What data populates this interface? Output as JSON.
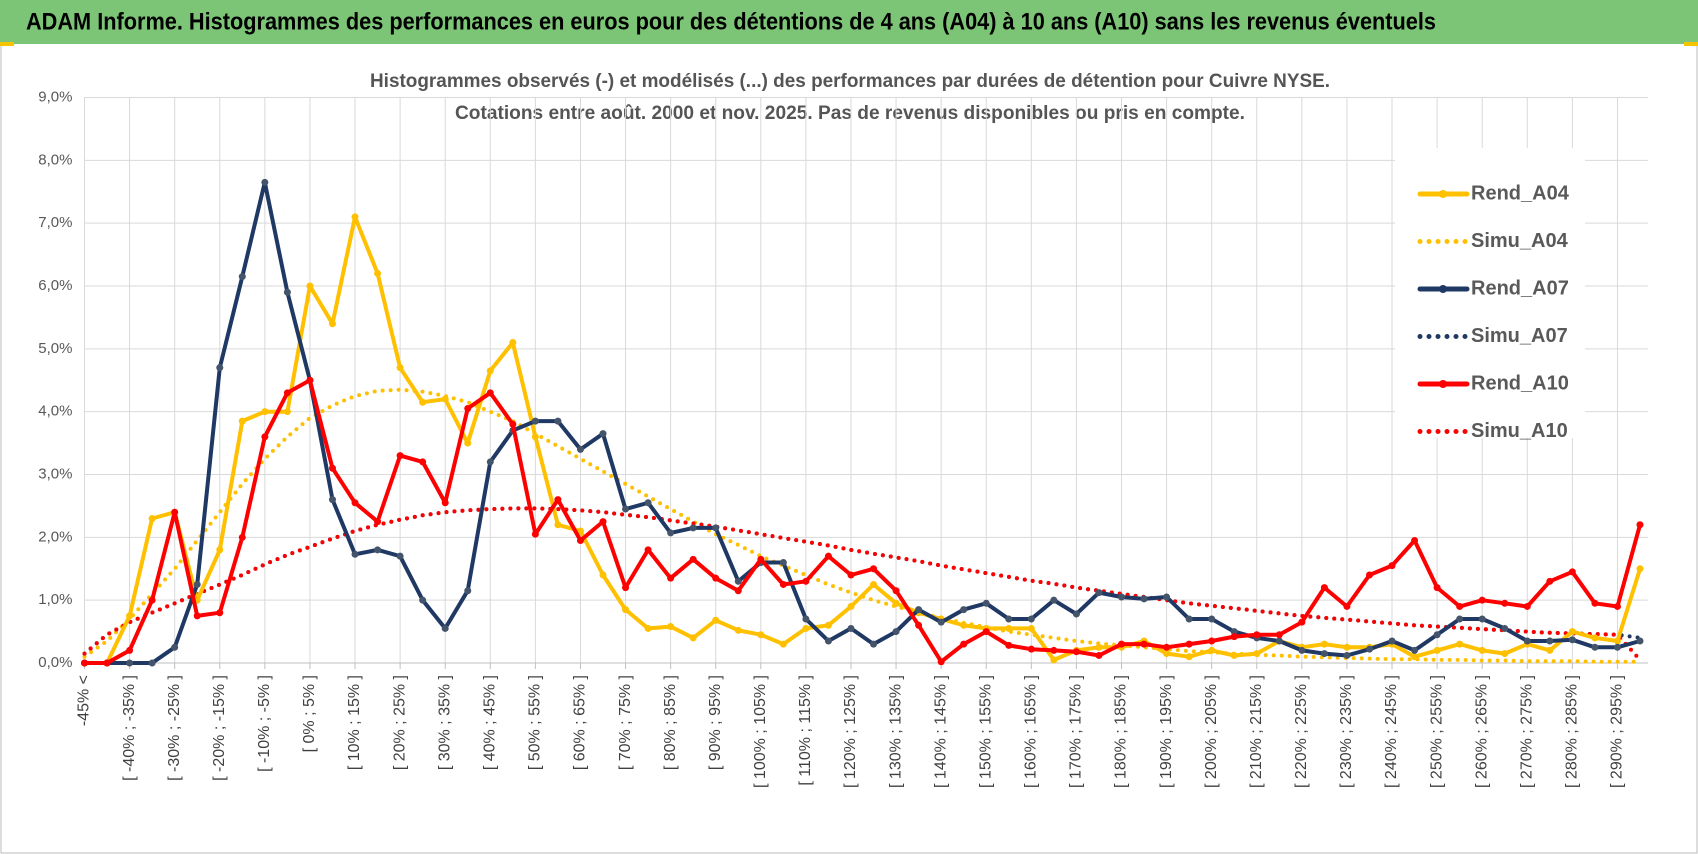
{
  "header": {
    "title": "ADAM Informe. Histogrammes des performances en euros pour des détentions de 4 ans (A04) à 10 ans (A10) sans les revenus éventuels"
  },
  "chart_data": {
    "type": "line",
    "title": "Histogrammes observés (-) et modélisés (...) des performances par durées de détention pour Cuivre NYSE.",
    "subtitle": "Cotations entre août. 2000 et nov. 2025. Pas de revenus disponibles ou pris en compte.",
    "categories": [
      "-45% <",
      null,
      "[ -40% ; -35% ]",
      null,
      "[ -30% ; -25% ]",
      null,
      "[ -20% ; -15% ]",
      null,
      "[ -10% ; -5% ]",
      null,
      "[ 0% ; 5% ]",
      null,
      "[ 10% ; 15% ]",
      null,
      "[ 20% ; 25% ]",
      null,
      "[ 30% ; 35% ]",
      null,
      "[ 40% ; 45% ]",
      null,
      "[ 50% ; 55% ]",
      null,
      "[ 60% ; 65% ]",
      null,
      "[ 70% ; 75% ]",
      null,
      "[ 80% ; 85% ]",
      null,
      "[ 90% ; 95% ]",
      null,
      "[ 100% ; 105% ]",
      null,
      "[ 110% ; 115% ]",
      null,
      "[ 120% ; 125% ]",
      null,
      "[ 130% ; 135% ]",
      null,
      "[ 140% ; 145% ]",
      null,
      "[ 150% ; 155% ]",
      null,
      "[ 160% ; 165% ]",
      null,
      "[ 170% ; 175% ]",
      null,
      "[ 180% ; 185% ]",
      null,
      "[ 190% ; 195% ]",
      null,
      "[ 200% ; 205% ]",
      null,
      "[ 210% ; 215% ]",
      null,
      "[ 220% ; 225% ]",
      null,
      "[ 230% ; 235% ]",
      null,
      "[ 240% ; 245% ]",
      null,
      "[ 250% ; 255% ]",
      null,
      "[ 260% ; 265% ]",
      null,
      "[ 270% ; 275% ]",
      null,
      "[ 280% ; 285% ]",
      null,
      "[ 290% ; 295% ]",
      null
    ],
    "ylim": [
      0,
      9
    ],
    "yticks": [
      {
        "value": 0,
        "label": "0,0%"
      },
      {
        "value": 1,
        "label": "1,0%"
      },
      {
        "value": 2,
        "label": "2,0%"
      },
      {
        "value": 3,
        "label": "3,0%"
      },
      {
        "value": 4,
        "label": "4,0%"
      },
      {
        "value": 5,
        "label": "5,0%"
      },
      {
        "value": 6,
        "label": "6,0%"
      },
      {
        "value": 7,
        "label": "7,0%"
      },
      {
        "value": 8,
        "label": "8,0%"
      },
      {
        "value": 9,
        "label": "9,0%"
      }
    ],
    "grid": true,
    "legend": "right",
    "series": [
      {
        "name": "Rend_A04",
        "color": "#FFC000",
        "line_style": "solid",
        "markers": true,
        "values": [
          0,
          0,
          0.75,
          2.3,
          2.4,
          1.0,
          1.8,
          3.85,
          4.0,
          4.0,
          6.0,
          5.4,
          7.1,
          6.2,
          4.7,
          4.15,
          4.2,
          3.5,
          4.65,
          5.1,
          3.6,
          2.2,
          2.1,
          1.4,
          0.85,
          0.55,
          0.58,
          0.4,
          0.68,
          0.52,
          0.45,
          0.3,
          0.55,
          0.6,
          0.9,
          1.25,
          0.95,
          0.8,
          0.7,
          0.6,
          0.55,
          0.55,
          0.55,
          0.05,
          0.2,
          0.25,
          0.25,
          0.35,
          0.15,
          0.1,
          0.2,
          0.12,
          0.15,
          0.35,
          0.25,
          0.3,
          0.25,
          0.25,
          0.3,
          0.1,
          0.2,
          0.3,
          0.2,
          0.15,
          0.3,
          0.2,
          0.5,
          0.4,
          0.35,
          1.5
        ]
      },
      {
        "name": "Simu_A04",
        "color": "#FFC000",
        "line_style": "dotted",
        "markers": false,
        "values": [
          0.1,
          0.35,
          0.7,
          1.1,
          1.5,
          1.95,
          2.4,
          2.85,
          3.25,
          3.6,
          3.9,
          4.1,
          4.25,
          4.33,
          4.35,
          4.32,
          4.25,
          4.15,
          4.0,
          3.85,
          3.65,
          3.45,
          3.25,
          3.05,
          2.85,
          2.65,
          2.45,
          2.25,
          2.05,
          1.88,
          1.7,
          1.55,
          1.4,
          1.25,
          1.12,
          1.0,
          0.9,
          0.8,
          0.72,
          0.64,
          0.57,
          0.5,
          0.45,
          0.4,
          0.35,
          0.31,
          0.28,
          0.25,
          0.22,
          0.19,
          0.17,
          0.15,
          0.13,
          0.12,
          0.1,
          0.09,
          0.08,
          0.07,
          0.06,
          0.06,
          0.05,
          0.05,
          0.04,
          0.04,
          0.03,
          0.03,
          0.03,
          0.02,
          0.02,
          0.02
        ]
      },
      {
        "name": "Rend_A07",
        "color": "#1F3864",
        "line_style": "solid",
        "markers": true,
        "values": [
          0,
          0,
          0,
          0,
          0.25,
          1.25,
          4.7,
          6.15,
          7.65,
          5.9,
          4.5,
          2.6,
          1.73,
          1.8,
          1.7,
          1.0,
          0.55,
          1.15,
          3.2,
          3.7,
          3.85,
          3.85,
          3.4,
          3.65,
          2.45,
          2.55,
          2.07,
          2.15,
          2.15,
          1.3,
          1.6,
          1.6,
          0.7,
          0.35,
          0.55,
          0.3,
          0.5,
          0.85,
          0.65,
          0.85,
          0.95,
          0.7,
          0.7,
          1.0,
          0.78,
          1.12,
          1.05,
          1.02,
          1.05,
          0.7,
          0.7,
          0.5,
          0.4,
          0.35,
          0.2,
          0.15,
          0.12,
          0.22,
          0.35,
          0.2,
          0.45,
          0.7,
          0.7,
          0.55,
          0.35,
          0.35,
          0.37,
          0.25,
          0.25,
          0.35
        ]
      },
      {
        "name": "Simu_A07",
        "color": "#1F3864",
        "line_style": "dotted",
        "markers": false,
        "values": [
          0.15,
          0.45,
          0.65,
          0.8,
          0.95,
          1.1,
          1.25,
          1.4,
          1.57,
          1.72,
          1.85,
          1.98,
          2.1,
          2.2,
          2.28,
          2.35,
          2.4,
          2.43,
          2.45,
          2.46,
          2.46,
          2.45,
          2.43,
          2.4,
          2.36,
          2.32,
          2.27,
          2.22,
          2.17,
          2.11,
          2.05,
          1.99,
          1.93,
          1.87,
          1.8,
          1.74,
          1.68,
          1.62,
          1.55,
          1.49,
          1.43,
          1.37,
          1.31,
          1.26,
          1.2,
          1.15,
          1.1,
          1.05,
          1.0,
          0.95,
          0.91,
          0.87,
          0.83,
          0.79,
          0.75,
          0.72,
          0.69,
          0.66,
          0.63,
          0.6,
          0.58,
          0.56,
          0.54,
          0.52,
          0.5,
          0.48,
          0.47,
          0.46,
          0.45,
          0.4
        ]
      },
      {
        "name": "Rend_A10",
        "color": "#FF0000",
        "line_style": "solid",
        "markers": true,
        "values": [
          0,
          0,
          0.2,
          1.0,
          2.4,
          0.75,
          0.8,
          2.0,
          3.6,
          4.3,
          4.5,
          3.1,
          2.55,
          2.25,
          3.3,
          3.2,
          2.55,
          4.05,
          4.3,
          3.8,
          2.05,
          2.6,
          1.95,
          2.25,
          1.2,
          1.8,
          1.35,
          1.65,
          1.35,
          1.15,
          1.65,
          1.25,
          1.3,
          1.7,
          1.4,
          1.5,
          1.15,
          0.6,
          0.02,
          0.3,
          0.5,
          0.28,
          0.22,
          0.2,
          0.18,
          0.12,
          0.3,
          0.3,
          0.25,
          0.3,
          0.35,
          0.42,
          0.45,
          0.45,
          0.65,
          1.2,
          0.9,
          1.4,
          1.55,
          1.95,
          1.2,
          0.9,
          1.0,
          0.95,
          0.9,
          1.3,
          1.45,
          0.95,
          0.9,
          2.2
        ]
      },
      {
        "name": "Simu_A10",
        "color": "#FF0000",
        "line_style": "dotted",
        "markers": false,
        "values": [
          0.15,
          0.45,
          0.65,
          0.8,
          0.95,
          1.1,
          1.25,
          1.4,
          1.57,
          1.72,
          1.85,
          1.98,
          2.1,
          2.2,
          2.28,
          2.35,
          2.4,
          2.43,
          2.45,
          2.46,
          2.46,
          2.45,
          2.43,
          2.4,
          2.36,
          2.32,
          2.27,
          2.22,
          2.17,
          2.11,
          2.05,
          1.99,
          1.93,
          1.87,
          1.8,
          1.74,
          1.68,
          1.62,
          1.55,
          1.49,
          1.43,
          1.37,
          1.31,
          1.26,
          1.2,
          1.15,
          1.1,
          1.05,
          1.0,
          0.95,
          0.91,
          0.87,
          0.83,
          0.79,
          0.75,
          0.72,
          0.69,
          0.66,
          0.63,
          0.6,
          0.58,
          0.56,
          0.54,
          0.52,
          0.5,
          0.48,
          0.47,
          0.46,
          0.45,
          0.05
        ]
      }
    ]
  }
}
